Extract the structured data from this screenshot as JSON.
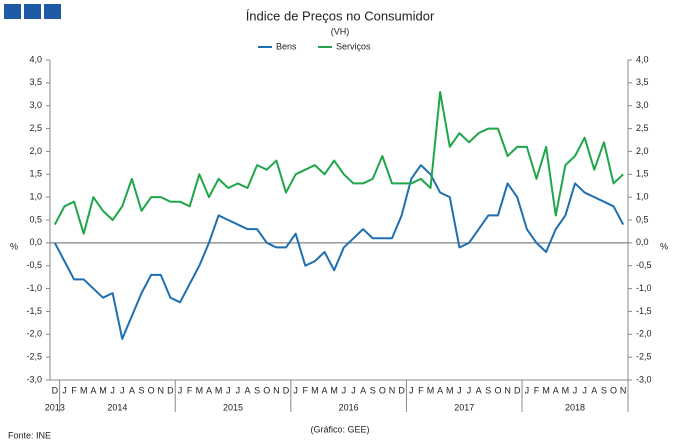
{
  "chart_data": {
    "type": "line",
    "title": "Índice de Preços no Consumidor",
    "subtitle": "(VH)",
    "source": "Fonte: INE",
    "credit": "(Gráfico: GEE)",
    "y_label": "%",
    "y2_label": "%",
    "categories": [
      "D",
      "J",
      "F",
      "M",
      "A",
      "M",
      "J",
      "J",
      "A",
      "S",
      "O",
      "N",
      "D",
      "J",
      "F",
      "M",
      "A",
      "M",
      "J",
      "J",
      "A",
      "S",
      "O",
      "N",
      "D",
      "J",
      "F",
      "M",
      "A",
      "M",
      "J",
      "J",
      "A",
      "S",
      "O",
      "N",
      "D",
      "J",
      "F",
      "M",
      "A",
      "M",
      "J",
      "J",
      "A",
      "S",
      "O",
      "N",
      "D",
      "J",
      "F",
      "M",
      "A",
      "M",
      "J",
      "J",
      "A",
      "S",
      "O",
      "N"
    ],
    "years": [
      "2013",
      "2014",
      "2015",
      "2016",
      "2017",
      "2018"
    ],
    "series": [
      {
        "name": "Bens",
        "color": "#1f6fb0",
        "values": [
          0.0,
          -0.4,
          -0.8,
          -0.8,
          -1.0,
          -1.2,
          -1.1,
          -2.1,
          -1.6,
          -1.1,
          -0.7,
          -0.7,
          -1.2,
          -1.3,
          -0.9,
          -0.5,
          0.0,
          0.6,
          0.5,
          0.4,
          0.3,
          0.3,
          0.0,
          -0.1,
          -0.1,
          0.2,
          -0.5,
          -0.4,
          -0.2,
          -0.6,
          -0.1,
          0.1,
          0.3,
          0.1,
          0.1,
          0.1,
          0.6,
          1.4,
          1.7,
          1.5,
          1.1,
          1.0,
          -0.1,
          0.0,
          0.3,
          0.6,
          0.6,
          1.3,
          1.0,
          0.3,
          0.0,
          -0.2,
          0.3,
          0.6,
          1.3,
          1.1,
          1.0,
          0.9,
          0.8,
          0.4
        ]
      },
      {
        "name": "Serviços",
        "color": "#1fa64a",
        "values": [
          0.4,
          0.8,
          0.9,
          0.2,
          1.0,
          0.7,
          0.5,
          0.8,
          1.4,
          0.7,
          1.0,
          1.0,
          0.9,
          0.9,
          0.8,
          1.5,
          1.0,
          1.4,
          1.2,
          1.3,
          1.2,
          1.7,
          1.6,
          1.8,
          1.1,
          1.5,
          1.6,
          1.7,
          1.5,
          1.8,
          1.5,
          1.3,
          1.3,
          1.4,
          1.9,
          1.3,
          1.3,
          1.3,
          1.4,
          1.2,
          3.3,
          2.1,
          2.4,
          2.2,
          2.4,
          2.5,
          2.5,
          1.9,
          2.1,
          2.1,
          1.4,
          2.1,
          0.6,
          1.7,
          1.9,
          2.3,
          1.6,
          2.2,
          1.3,
          1.5
        ]
      }
    ],
    "ylim": [
      -3,
      4
    ],
    "yticks": [
      {
        "value": -3,
        "label": "-3,0"
      },
      {
        "value": -2.5,
        "label": "-2,5"
      },
      {
        "value": -2,
        "label": "-2,0"
      },
      {
        "value": -1.5,
        "label": "-1,5"
      },
      {
        "value": -1,
        "label": "-1,0"
      },
      {
        "value": -0.5,
        "label": "-0,5"
      },
      {
        "value": 0,
        "label": "0,0"
      },
      {
        "value": 0.5,
        "label": "0,5"
      },
      {
        "value": 1,
        "label": "1,0"
      },
      {
        "value": 1.5,
        "label": "1,5"
      },
      {
        "value": 2,
        "label": "2,0"
      },
      {
        "value": 2.5,
        "label": "2,5"
      },
      {
        "value": 3,
        "label": "3,0"
      },
      {
        "value": 3.5,
        "label": "3,5"
      },
      {
        "value": 4,
        "label": "4,0"
      }
    ],
    "y2lim": [
      -3,
      4
    ],
    "y2ticks": [
      {
        "value": -3,
        "label": "-3,0"
      },
      {
        "value": -2.5,
        "label": "-2,5"
      },
      {
        "value": -2,
        "label": "-2,0"
      },
      {
        "value": -1.5,
        "label": "-1,5"
      },
      {
        "value": -1,
        "label": "-1,0"
      },
      {
        "value": -0.5,
        "label": "-0,5"
      },
      {
        "value": 0,
        "label": "0,0"
      },
      {
        "value": 0.5,
        "label": "0,5"
      },
      {
        "value": 1,
        "label": "1,0"
      },
      {
        "value": 1.5,
        "label": "1,5"
      },
      {
        "value": 2,
        "label": "2,0"
      },
      {
        "value": 2.5,
        "label": "2,5"
      },
      {
        "value": 3,
        "label": "3,0"
      },
      {
        "value": 3.5,
        "label": "3,5"
      },
      {
        "value": 4,
        "label": "4,0"
      }
    ],
    "grid": false,
    "legend": "top"
  }
}
